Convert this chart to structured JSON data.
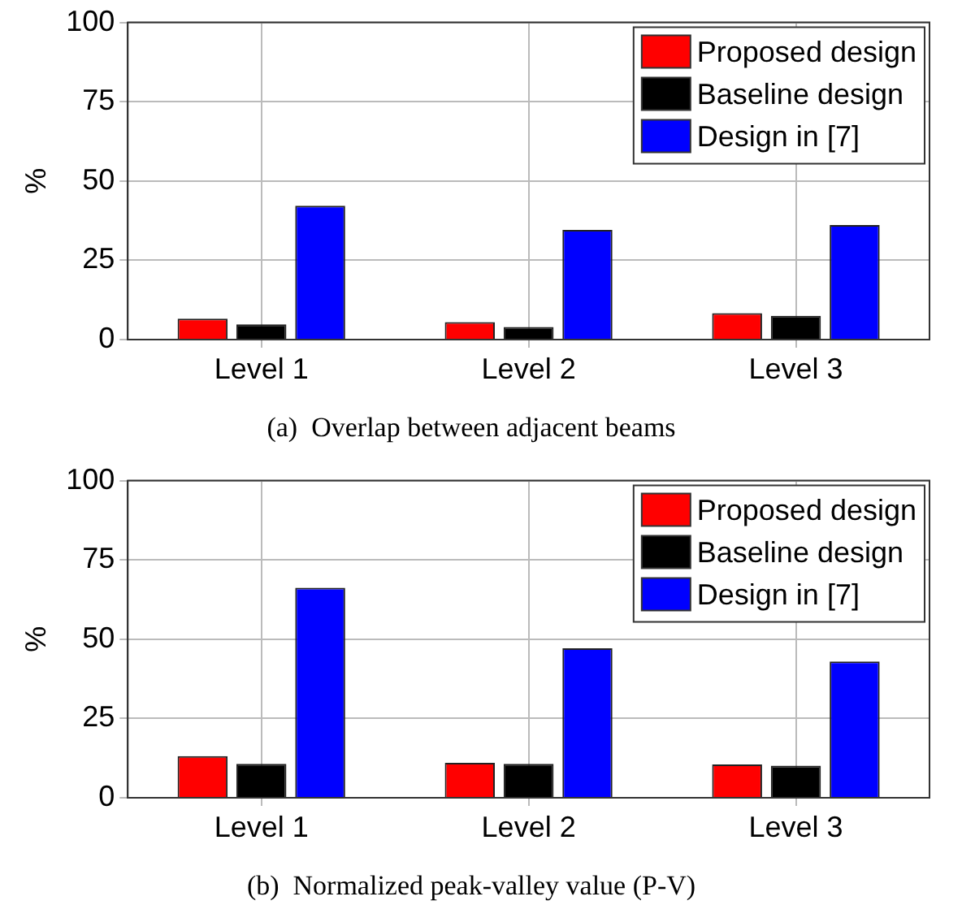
{
  "chart_data": [
    {
      "type": "bar",
      "title": "(a)  Overlap between adjacent beams",
      "ylabel": "%",
      "categories": [
        "Level 1",
        "Level 2",
        "Level 3"
      ],
      "series": [
        {
          "name": "Proposed design",
          "color": "#ff0000",
          "values": [
            6.6,
            5.5,
            8.3
          ]
        },
        {
          "name": "Baseline design",
          "color": "#000000",
          "values": [
            4.8,
            4.0,
            7.5
          ]
        },
        {
          "name": "Design in [7]",
          "color": "#0000ff",
          "values": [
            42.2,
            34.6,
            36.1
          ]
        }
      ],
      "ylim": [
        0,
        100
      ],
      "yticks": [
        0,
        25,
        50,
        75,
        100
      ],
      "grid": true,
      "legend": "top right"
    },
    {
      "type": "bar",
      "title": "(b)  Normalized peak-valley value (P-V)",
      "ylabel": "%",
      "categories": [
        "Level 1",
        "Level 2",
        "Level 3"
      ],
      "series": [
        {
          "name": "Proposed design",
          "color": "#ff0000",
          "values": [
            13.1,
            11.0,
            10.5
          ]
        },
        {
          "name": "Baseline design",
          "color": "#000000",
          "values": [
            10.7,
            10.7,
            10.1
          ]
        },
        {
          "name": "Design in [7]",
          "color": "#0000ff",
          "values": [
            66.2,
            47.1,
            43.0
          ]
        }
      ],
      "ylim": [
        0,
        100
      ],
      "yticks": [
        0,
        25,
        50,
        75,
        100
      ],
      "grid": true,
      "legend": "top right"
    }
  ]
}
